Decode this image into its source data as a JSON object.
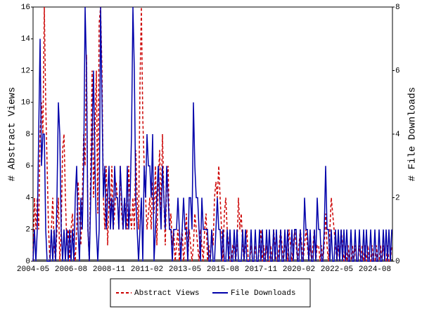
{
  "chart_data": {
    "type": "line",
    "y_label": "# Abstract Views",
    "y2_label": "# File Downloads",
    "categories": [
      "2004-05",
      null,
      null,
      null,
      null,
      null,
      null,
      null,
      null,
      null,
      null,
      null,
      null,
      null,
      null,
      null,
      null,
      null,
      null,
      null,
      null,
      null,
      null,
      null,
      null,
      null,
      null,
      "2006-08",
      null,
      null,
      null,
      null,
      null,
      null,
      null,
      null,
      null,
      null,
      null,
      null,
      null,
      null,
      null,
      null,
      null,
      null,
      null,
      null,
      null,
      null,
      null,
      null,
      null,
      null,
      "2008-11",
      null,
      null,
      null,
      null,
      null,
      null,
      null,
      null,
      null,
      null,
      null,
      null,
      null,
      null,
      null,
      null,
      null,
      null,
      null,
      null,
      null,
      null,
      null,
      null,
      null,
      null,
      "2011-02",
      null,
      null,
      null,
      null,
      null,
      null,
      null,
      null,
      null,
      null,
      null,
      null,
      null,
      null,
      null,
      null,
      null,
      null,
      null,
      null,
      null,
      null,
      null,
      null,
      null,
      null,
      "2013-05",
      null,
      null,
      null,
      null,
      null,
      null,
      null,
      null,
      null,
      null,
      null,
      null,
      null,
      null,
      null,
      null,
      null,
      null,
      null,
      null,
      null,
      null,
      null,
      null,
      null,
      null,
      "2015-08",
      null,
      null,
      null,
      null,
      null,
      null,
      null,
      null,
      null,
      null,
      null,
      null,
      null,
      null,
      null,
      null,
      null,
      null,
      null,
      null,
      null,
      null,
      null,
      null,
      null,
      null,
      "2017-11",
      null,
      null,
      null,
      null,
      null,
      null,
      null,
      null,
      null,
      null,
      null,
      null,
      null,
      null,
      null,
      null,
      null,
      null,
      null,
      null,
      null,
      null,
      null,
      null,
      null,
      null,
      "2020-02",
      null,
      null,
      null,
      null,
      null,
      null,
      null,
      null,
      null,
      null,
      null,
      null,
      null,
      null,
      null,
      null,
      null,
      null,
      null,
      null,
      null,
      null,
      null,
      null,
      null,
      null,
      "2022-05",
      null,
      null,
      null,
      null,
      null,
      null,
      null,
      null,
      null,
      null,
      null,
      null,
      null,
      null,
      null,
      null,
      null,
      null,
      null,
      null,
      null,
      null,
      null,
      null,
      null,
      null,
      "2024-08",
      null,
      null,
      null,
      null,
      null,
      null,
      null,
      null,
      null,
      null,
      null,
      null
    ],
    "series": [
      {
        "name": "Abstract Views",
        "color": "#cc0000",
        "style": "dashed",
        "axis": "y",
        "values": [
          0,
          4,
          2,
          4,
          2,
          8,
          10,
          8,
          16,
          10,
          6,
          2,
          0,
          2,
          4,
          1,
          0,
          2,
          4,
          0,
          2,
          7,
          8,
          4,
          1,
          2,
          0,
          2,
          3,
          1,
          0,
          2,
          5,
          3,
          1,
          4,
          8,
          6,
          13,
          2,
          0,
          6,
          12,
          4,
          8,
          12,
          3,
          15,
          16,
          12,
          4,
          2,
          6,
          1,
          4,
          3,
          6,
          2,
          3,
          5,
          4,
          2,
          6,
          3,
          2,
          4,
          3,
          2,
          6,
          3,
          2,
          4,
          2,
          7,
          4,
          2,
          11,
          16,
          9,
          6,
          4,
          2,
          3,
          4,
          2,
          5,
          3,
          6,
          1,
          5,
          7,
          3,
          8,
          4,
          1,
          5,
          6,
          2,
          3,
          1,
          2,
          0,
          1,
          2,
          0,
          1,
          2,
          0,
          1,
          3,
          0,
          2,
          1,
          0,
          1,
          3,
          2,
          1,
          0,
          2,
          1,
          0,
          2,
          3,
          0,
          1,
          0,
          2,
          1,
          4,
          5,
          4,
          6,
          4,
          2,
          0,
          3,
          4,
          2,
          1,
          0,
          0,
          1,
          1,
          0,
          1,
          4,
          2,
          3,
          1,
          0,
          1,
          2,
          0,
          0,
          1,
          0,
          0,
          1,
          0,
          0,
          1,
          2,
          0,
          1,
          0,
          1,
          0,
          0,
          1,
          0,
          2,
          1,
          0,
          0,
          1,
          2,
          1,
          0,
          1,
          1,
          0,
          2,
          1,
          0,
          1,
          2,
          1,
          0,
          1,
          2,
          1,
          0,
          1,
          2,
          1,
          0,
          1,
          0,
          1,
          2,
          0,
          1,
          1,
          0,
          1,
          0,
          1,
          3,
          1,
          0,
          2,
          4,
          3,
          2,
          1,
          0,
          1,
          0,
          2,
          1,
          0,
          1,
          0,
          1,
          0,
          0,
          1,
          0,
          1,
          0,
          0,
          1,
          0,
          1,
          0,
          1,
          0,
          1,
          0,
          0,
          1,
          0,
          0,
          1,
          0,
          0,
          1,
          0,
          1,
          0,
          0,
          1,
          0,
          0,
          1
        ]
      },
      {
        "name": "File Downloads",
        "color": "#0000aa",
        "style": "solid",
        "axis": "y2",
        "values": [
          0,
          1,
          0,
          1,
          4,
          7,
          3,
          4,
          4,
          1,
          0,
          0,
          0,
          1,
          0,
          1,
          0,
          2,
          5,
          4,
          1,
          0,
          1,
          0,
          1,
          0,
          1,
          0,
          1,
          0,
          2,
          3,
          1,
          0,
          2,
          1,
          3,
          8,
          6,
          1,
          0,
          2,
          4,
          6,
          3,
          1,
          0,
          1,
          8,
          5,
          2,
          3,
          1,
          2,
          3,
          1,
          2,
          1,
          3,
          2,
          2,
          1,
          3,
          2,
          1,
          2,
          1,
          3,
          1,
          2,
          4,
          8,
          6,
          2,
          1,
          0,
          1,
          2,
          0,
          3,
          2,
          4,
          3,
          3,
          2,
          4,
          0,
          1,
          2,
          3,
          2,
          1,
          3,
          2,
          1,
          3,
          2,
          1,
          1,
          0,
          1,
          1,
          1,
          2,
          1,
          0,
          1,
          2,
          1,
          1,
          0,
          2,
          2,
          1,
          5,
          3,
          2,
          2,
          1,
          0,
          2,
          1,
          1,
          1,
          1,
          0,
          0,
          1,
          0,
          0,
          1,
          2,
          1,
          1,
          0,
          1,
          0,
          0,
          1,
          0,
          1,
          0,
          0,
          1,
          0,
          1,
          0,
          0,
          0,
          1,
          0,
          1,
          0,
          0,
          0,
          1,
          0,
          0,
          1,
          0,
          0,
          1,
          0,
          1,
          0,
          0,
          1,
          0,
          1,
          0,
          0,
          1,
          0,
          1,
          0,
          0,
          1,
          0,
          0,
          1,
          0,
          1,
          0,
          0,
          1,
          0,
          1,
          1,
          0,
          0,
          1,
          0,
          0,
          2,
          1,
          1,
          0,
          1,
          0,
          0,
          1,
          0,
          2,
          1,
          1,
          0,
          0,
          1,
          3,
          1,
          1,
          0,
          1,
          0,
          0,
          1,
          0,
          1,
          0,
          1,
          0,
          1,
          0,
          1,
          0,
          0,
          1,
          0,
          0,
          1,
          0,
          0,
          1,
          0,
          0,
          1,
          0,
          1,
          0,
          0,
          1,
          0,
          0,
          1,
          0,
          0,
          1,
          0,
          0,
          1,
          0,
          1,
          0,
          1,
          0,
          1
        ]
      }
    ],
    "ylim": [
      0,
      16
    ],
    "yticks": [
      0,
      2,
      4,
      6,
      8,
      10,
      12,
      14,
      16
    ],
    "y2lim": [
      0,
      8
    ],
    "y2ticks": [
      0,
      2,
      4,
      6,
      8
    ],
    "grid": false,
    "legend": "bottom"
  }
}
